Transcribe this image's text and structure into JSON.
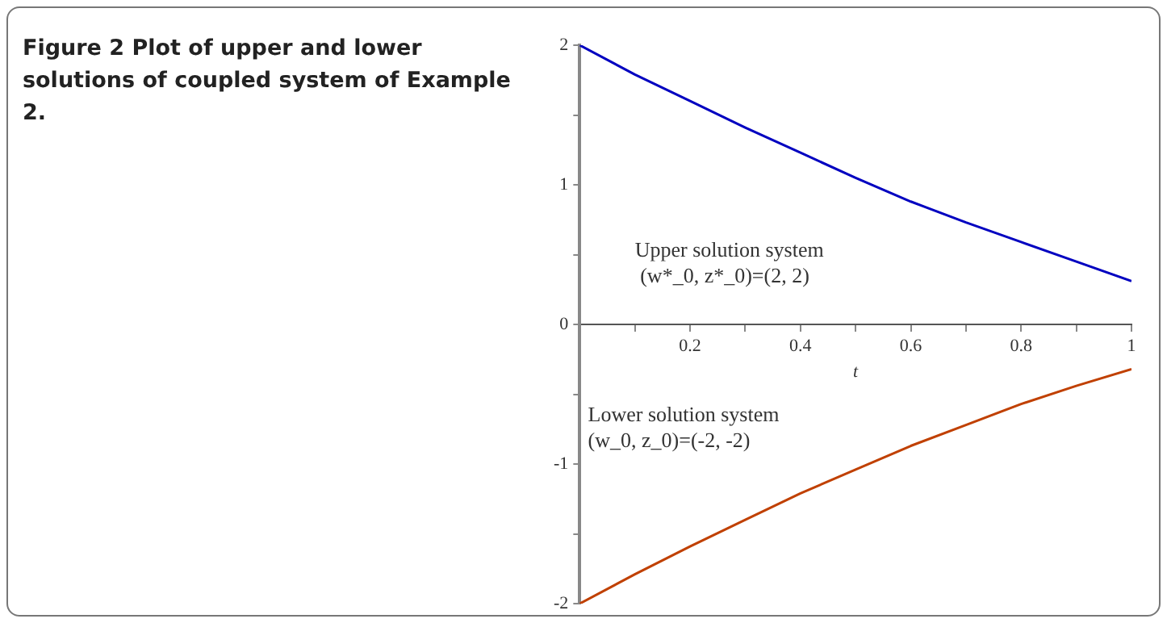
{
  "chart_data": {
    "type": "line",
    "title": "Figure 2  Plot of upper and lower solutions of coupled system of Example 2.",
    "xlabel": "t",
    "x": [
      0,
      0.1,
      0.2,
      0.3,
      0.4,
      0.5,
      0.6,
      0.7,
      0.8,
      0.9,
      1
    ],
    "series": [
      {
        "color": "#0000c0",
        "values": [
          2,
          1.79,
          1.6,
          1.41,
          1.23,
          1.05,
          0.88,
          0.73,
          0.59,
          0.45,
          0.31
        ]
      },
      {
        "color": "#c04000",
        "values": [
          -2,
          -1.79,
          -1.59,
          -1.4,
          -1.21,
          -1.04,
          -0.87,
          -0.72,
          -0.57,
          -0.44,
          -0.32
        ]
      }
    ],
    "xlim": [
      0,
      1
    ],
    "ylim": [
      -2,
      2
    ],
    "xticks": [
      {
        "value": 0.1,
        "label": null
      },
      0.2,
      {
        "value": 0.3,
        "label": null
      },
      0.4,
      {
        "value": 0.5,
        "label": null
      },
      0.6,
      {
        "value": 0.7,
        "label": null
      },
      0.8,
      {
        "value": 0.9,
        "label": null
      },
      1
    ],
    "yticks": [
      -2,
      {
        "value": -1.5,
        "label": null
      },
      -1,
      {
        "value": -0.5,
        "label": null
      },
      0,
      {
        "value": 0.5,
        "label": null
      },
      1,
      {
        "value": 1.5,
        "label": null
      },
      2
    ],
    "annotations": [
      "Upper solution system\n (w*_0, z*_0)=(2, 2)",
      "Lower solution system\n(w_0, z_0)=(-2, -2)"
    ],
    "grid": false,
    "legend": false,
    "marker": "none",
    "line_style": "solid"
  }
}
